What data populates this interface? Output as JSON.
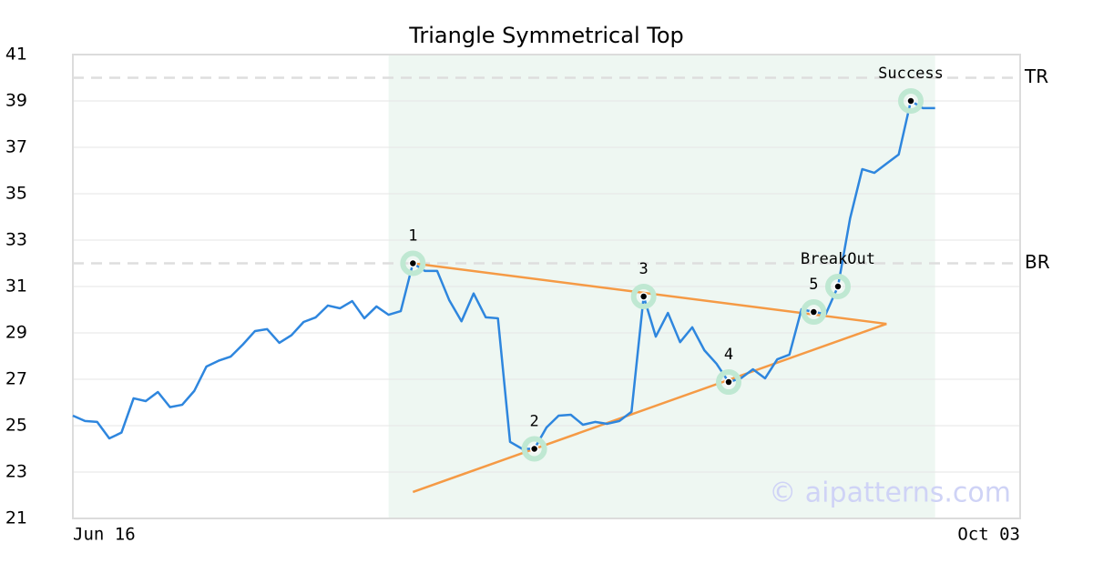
{
  "chart_data": {
    "type": "line",
    "title": "Triangle Symmetrical Top",
    "categories": [
      "Jun 16",
      null,
      null,
      null,
      null,
      null,
      null,
      null,
      null,
      null,
      null,
      null,
      null,
      null,
      null,
      null,
      null,
      null,
      null,
      null,
      null,
      null,
      null,
      null,
      null,
      null,
      null,
      null,
      null,
      null,
      null,
      null,
      null,
      null,
      null,
      null,
      null,
      null,
      null,
      null,
      null,
      null,
      null,
      null,
      null,
      null,
      null,
      null,
      null,
      null,
      null,
      null,
      null,
      null,
      null,
      null,
      null,
      null,
      null,
      null,
      null,
      null,
      null,
      null,
      null,
      null,
      null,
      null,
      null,
      null,
      null,
      null,
      null,
      null,
      null,
      null,
      null,
      null,
      "Oct 03"
    ],
    "series": [
      {
        "color": "#2e86de",
        "values": [
          25.43,
          25.2,
          25.16,
          24.45,
          24.7,
          26.18,
          26.06,
          26.45,
          25.8,
          25.9,
          26.5,
          27.55,
          27.8,
          27.98,
          28.5,
          29.08,
          29.16,
          28.57,
          28.9,
          29.47,
          29.67,
          30.18,
          30.06,
          30.37,
          29.63,
          30.14,
          29.78,
          29.94,
          32.0,
          31.67,
          31.67,
          30.4,
          29.5,
          30.7,
          29.67,
          29.63,
          24.3,
          24.0,
          24.0,
          24.92,
          25.43,
          25.47,
          25.04,
          25.16,
          25.08,
          25.2,
          25.6,
          30.57,
          28.84,
          29.86,
          28.6,
          29.24,
          28.25,
          27.67,
          26.88,
          27.04,
          27.43,
          27.04,
          27.86,
          28.06,
          30.02,
          29.9,
          29.82,
          31.0,
          33.94,
          36.06,
          35.9,
          36.3,
          36.69,
          39.0,
          38.69,
          38.69,
          null,
          null,
          null,
          null,
          null,
          null,
          null
        ]
      }
    ],
    "ylim": [
      21,
      41
    ],
    "yticks": [
      21,
      23,
      25,
      27,
      29,
      31,
      33,
      35,
      37,
      39,
      41
    ],
    "grid": true,
    "highlight_range": [
      26,
      71
    ],
    "highlight_color": "#eef7f2",
    "trendlines": [
      {
        "x": [
          28,
          67
        ],
        "values": [
          32.0,
          29.39
        ]
      },
      {
        "x": [
          28,
          67
        ],
        "values": [
          22.14,
          29.39
        ]
      }
    ],
    "trendline_color": "#f59a45",
    "reference_lines": [
      {
        "label": "TR",
        "value": 40
      },
      {
        "label": "BR",
        "value": 32
      }
    ],
    "pattern_points": [
      {
        "label": "1",
        "index": 28,
        "value": 32.0
      },
      {
        "label": "2",
        "index": 38,
        "value": 24.0
      },
      {
        "label": "3",
        "index": 47,
        "value": 30.57
      },
      {
        "label": "4",
        "index": 54,
        "value": 26.88
      },
      {
        "label": "5",
        "index": 61,
        "value": 29.9
      },
      {
        "label": "BreakOut",
        "index": 63,
        "value": 31.0
      },
      {
        "label": "Success",
        "index": 69,
        "value": 39.0
      }
    ],
    "watermark": "© aipatterns.com"
  }
}
